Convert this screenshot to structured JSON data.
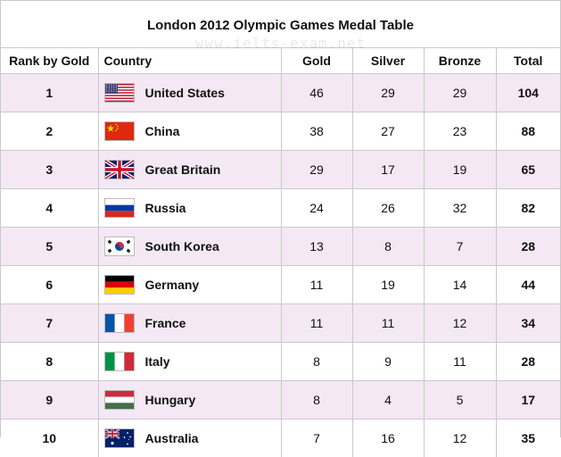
{
  "chart_data": {
    "type": "table",
    "title": "London 2012 Olympic Games Medal Table",
    "watermark": "www.ielts-exam.net",
    "columns": [
      "Rank by Gold",
      "Country",
      "Gold",
      "Silver",
      "Bronze",
      "Total"
    ],
    "rows": [
      {
        "rank": "1",
        "country": "United States",
        "flag": "us-flag",
        "gold": 46,
        "silver": 29,
        "bronze": 29,
        "total": 104
      },
      {
        "rank": "2",
        "country": "China",
        "flag": "china-flag",
        "gold": 38,
        "silver": 27,
        "bronze": 23,
        "total": 88
      },
      {
        "rank": "3",
        "country": "Great Britain",
        "flag": "uk-flag",
        "gold": 29,
        "silver": 17,
        "bronze": 19,
        "total": 65
      },
      {
        "rank": "4",
        "country": "Russia",
        "flag": "russia-flag",
        "gold": 24,
        "silver": 26,
        "bronze": 32,
        "total": 82
      },
      {
        "rank": "5",
        "country": "South Korea",
        "flag": "south-korea-flag",
        "gold": 13,
        "silver": 8,
        "bronze": 7,
        "total": 28
      },
      {
        "rank": "6",
        "country": "Germany",
        "flag": "germany-flag",
        "gold": 11,
        "silver": 19,
        "bronze": 14,
        "total": 44
      },
      {
        "rank": "7",
        "country": "France",
        "flag": "france-flag",
        "gold": 11,
        "silver": 11,
        "bronze": 12,
        "total": 34
      },
      {
        "rank": "8",
        "country": "Italy",
        "flag": "italy-flag",
        "gold": 8,
        "silver": 9,
        "bronze": 11,
        "total": 28
      },
      {
        "rank": "9",
        "country": "Hungary",
        "flag": "hungary-flag",
        "gold": 8,
        "silver": 4,
        "bronze": 5,
        "total": 17
      },
      {
        "rank": "10",
        "country": "Australia",
        "flag": "australia-flag",
        "gold": 7,
        "silver": 16,
        "bronze": 12,
        "total": 35
      }
    ],
    "colors": {
      "row_stripe": "#f3e8f3",
      "row_plain": "#ffffff",
      "border": "#c9c9c9"
    }
  }
}
